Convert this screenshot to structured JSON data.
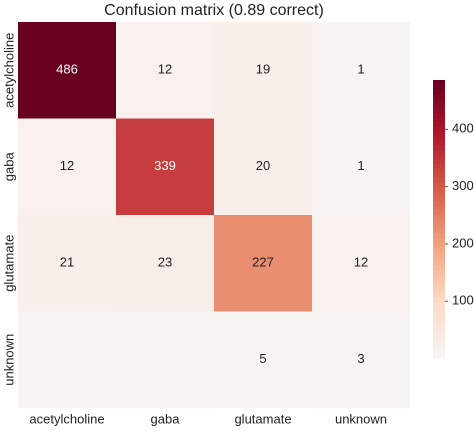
{
  "chart_data": {
    "type": "heatmap",
    "title": "Confusion matrix (0.89 correct)",
    "categories": [
      "acetylcholine",
      "gaba",
      "glutamate",
      "unknown"
    ],
    "values": [
      [
        486,
        12,
        19,
        1
      ],
      [
        12,
        339,
        20,
        1
      ],
      [
        21,
        23,
        227,
        12
      ],
      [
        null,
        null,
        5,
        3
      ]
    ],
    "colormap": [
      "#f7f4f3",
      "#fddbc7",
      "#f4a582",
      "#d6604d",
      "#b2182b",
      "#67001f"
    ],
    "clim": [
      1,
      486
    ],
    "cticks": [
      100,
      200,
      300,
      400
    ]
  }
}
